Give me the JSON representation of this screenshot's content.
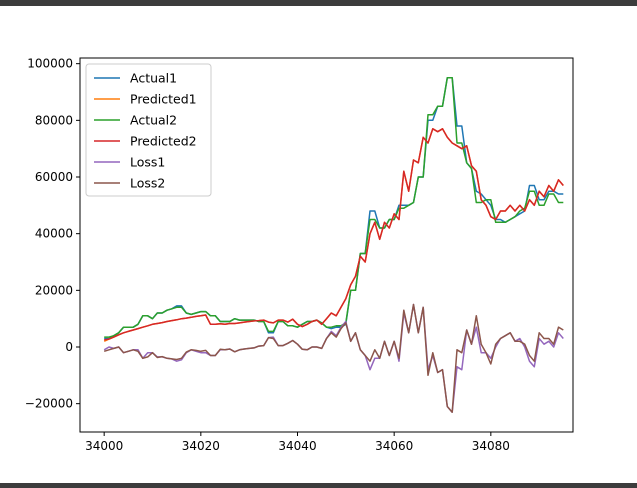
{
  "chart_data": {
    "type": "line",
    "title": "",
    "xlabel": "",
    "ylabel": "",
    "xlim": [
      33995,
      34097
    ],
    "ylim": [
      -30000,
      102000
    ],
    "x_ticks": [
      34000,
      34020,
      34040,
      34060,
      34080
    ],
    "y_ticks": [
      -20000,
      0,
      20000,
      40000,
      60000,
      80000,
      100000
    ],
    "x_tick_labels": [
      "34000",
      "34020",
      "34040",
      "34060",
      "34080"
    ],
    "y_tick_labels": [
      "−20000",
      "0",
      "20000",
      "40000",
      "60000",
      "80000",
      "100000"
    ],
    "grid": false,
    "legend_position": "top-left",
    "x": [
      34000,
      34001,
      34002,
      34003,
      34004,
      34005,
      34006,
      34007,
      34008,
      34009,
      34010,
      34011,
      34012,
      34013,
      34014,
      34015,
      34016,
      34017,
      34018,
      34019,
      34020,
      34021,
      34022,
      34023,
      34024,
      34025,
      34026,
      34027,
      34028,
      34029,
      34030,
      34031,
      34032,
      34033,
      34034,
      34035,
      34036,
      34037,
      34038,
      34039,
      34040,
      34041,
      34042,
      34043,
      34044,
      34045,
      34046,
      34047,
      34048,
      34049,
      34050,
      34051,
      34052,
      34053,
      34054,
      34055,
      34056,
      34057,
      34058,
      34059,
      34060,
      34061,
      34062,
      34063,
      34064,
      34065,
      34066,
      34067,
      34068,
      34069,
      34070,
      34071,
      34072,
      34073,
      34074,
      34075,
      34076,
      34077,
      34078,
      34079,
      34080,
      34081,
      34082,
      34083,
      34084,
      34085,
      34086,
      34087,
      34088,
      34089,
      34090,
      34091,
      34092,
      34093,
      34094,
      34095
    ],
    "series": [
      {
        "name": "Actual1",
        "color": "#1f77b4",
        "values": [
          3000,
          3000,
          4000,
          5000,
          7000,
          7000,
          7000,
          8000,
          11000,
          11000,
          10000,
          12000,
          12000,
          13000,
          13500,
          14500,
          14500,
          12000,
          11500,
          12000,
          12500,
          12500,
          11000,
          11000,
          9000,
          9000,
          9000,
          10000,
          9500,
          9500,
          9500,
          9500,
          9000,
          9000,
          5000,
          5000,
          9000,
          9000,
          7500,
          7500,
          7000,
          8000,
          9000,
          9000,
          9500,
          8500,
          7000,
          6500,
          7000,
          7000,
          8000,
          20000,
          20000,
          33000,
          33000,
          48000,
          48000,
          42000,
          42000,
          45000,
          45000,
          50000,
          50000,
          50000,
          51000,
          60000,
          60000,
          80000,
          80000,
          85000,
          85000,
          95000,
          95000,
          78000,
          78000,
          65000,
          63000,
          55000,
          54000,
          52000,
          50000,
          45000,
          45000,
          44000,
          45000,
          46000,
          47000,
          48000,
          57000,
          57000,
          52000,
          52000,
          55000,
          55000,
          54000,
          54000
        ]
      },
      {
        "name": "Predicted1",
        "color": "#ff7f0e",
        "values": [
          2000,
          2800,
          3500,
          4300,
          5000,
          5500,
          6000,
          6500,
          7000,
          7500,
          8000,
          8300,
          8600,
          9000,
          9300,
          9600,
          10000,
          10200,
          10500,
          10800,
          11000,
          11300,
          8000,
          8000,
          8200,
          8000,
          8300,
          8300,
          8500,
          8800,
          9000,
          9200,
          9300,
          9500,
          8800,
          8500,
          9500,
          9500,
          8800,
          9800,
          8000,
          7200,
          8000,
          9000,
          9500,
          8000,
          10000,
          12000,
          11000,
          14000,
          17000,
          22000,
          25000,
          32000,
          30000,
          40000,
          44000,
          38000,
          44000,
          42000,
          47000,
          45000,
          62000,
          55000,
          66000,
          65000,
          74000,
          72000,
          77000,
          76000,
          77000,
          74000,
          72000,
          71000,
          70000,
          71000,
          64000,
          62000,
          52000,
          50000,
          46000,
          45000,
          48000,
          48000,
          50000,
          48000,
          50000,
          48000,
          52000,
          50000,
          55000,
          53000,
          57000,
          55000,
          59000,
          57000
        ]
      },
      {
        "name": "Actual2",
        "color": "#2ca02c",
        "values": [
          3500,
          3500,
          4000,
          5000,
          7000,
          7000,
          7000,
          8000,
          11000,
          11000,
          10000,
          12000,
          12000,
          13000,
          13500,
          14000,
          14000,
          12000,
          11500,
          12000,
          12500,
          12500,
          11000,
          11000,
          9000,
          9000,
          9000,
          10000,
          9500,
          9500,
          9500,
          9500,
          9000,
          9000,
          5500,
          5500,
          9000,
          9000,
          7500,
          7500,
          7000,
          8000,
          9000,
          9000,
          9500,
          8500,
          7000,
          7000,
          7500,
          7500,
          8500,
          20000,
          20000,
          33000,
          33000,
          45000,
          45000,
          42000,
          42000,
          45000,
          45000,
          49000,
          49000,
          50000,
          51000,
          60000,
          60000,
          82000,
          82000,
          85000,
          85000,
          95000,
          95000,
          72000,
          72000,
          65000,
          63000,
          51000,
          51000,
          52000,
          52000,
          44000,
          44000,
          44000,
          45000,
          46000,
          48000,
          49000,
          55000,
          55000,
          50000,
          50000,
          54000,
          54000,
          51000,
          51000
        ]
      },
      {
        "name": "Predicted2",
        "color": "#d62728",
        "values": [
          2500,
          2800,
          3500,
          4300,
          5000,
          5500,
          6000,
          6500,
          7000,
          7500,
          8000,
          8300,
          8600,
          9000,
          9300,
          9600,
          10000,
          10200,
          10500,
          10800,
          11000,
          11300,
          8000,
          8000,
          8200,
          8000,
          8300,
          8300,
          8500,
          8800,
          9000,
          9200,
          9300,
          9500,
          8800,
          8500,
          9500,
          9500,
          8800,
          9800,
          8000,
          7200,
          8000,
          9000,
          9500,
          8000,
          10000,
          12000,
          11000,
          14000,
          17000,
          22000,
          25000,
          32000,
          30000,
          40000,
          44000,
          38000,
          44000,
          42000,
          47000,
          45000,
          62000,
          55000,
          66000,
          65000,
          74000,
          72000,
          77000,
          76000,
          77000,
          74000,
          72000,
          71000,
          70000,
          71000,
          64000,
          62000,
          52000,
          50000,
          46000,
          45000,
          48000,
          48000,
          50000,
          48000,
          50000,
          48000,
          52000,
          50000,
          55000,
          53000,
          57000,
          55000,
          59000,
          57000
        ]
      },
      {
        "name": "Loss1",
        "color": "#9467bd",
        "values": [
          -1000,
          0,
          -500,
          0,
          -2000,
          -1500,
          -1000,
          -1000,
          -4000,
          -2000,
          -2000,
          -3500,
          -3500,
          -4000,
          -4200,
          -5000,
          -4500,
          -2000,
          -1000,
          -1500,
          -2000,
          -2000,
          -3000,
          -3000,
          -1000,
          -1000,
          -700,
          -1700,
          -1000,
          -700,
          -500,
          -300,
          300,
          500,
          3300,
          3500,
          500,
          500,
          1300,
          2300,
          1000,
          -800,
          -1000,
          0,
          0,
          -500,
          3000,
          5500,
          4000,
          7000,
          9000,
          2000,
          5000,
          -1000,
          -3000,
          -8000,
          -4000,
          -4000,
          2000,
          -3000,
          2000,
          -5000,
          12000,
          5000,
          15000,
          5000,
          14000,
          -8000,
          -3000,
          -9000,
          -8000,
          -21000,
          -23000,
          -7000,
          -8000,
          6000,
          1000,
          7000,
          -2000,
          -2000,
          -4000,
          0,
          3000,
          4000,
          5000,
          2000,
          3000,
          0,
          -5000,
          -7000,
          3000,
          1000,
          2000,
          0,
          5000,
          3000
        ]
      },
      {
        "name": "Loss2",
        "color": "#8c564b",
        "values": [
          -1500,
          -1000,
          -500,
          0,
          -2000,
          -1500,
          -1000,
          -1500,
          -4000,
          -3500,
          -2000,
          -3700,
          -3400,
          -4000,
          -4200,
          -4400,
          -4000,
          -1800,
          -1000,
          -1200,
          -1500,
          -1200,
          -3000,
          -3000,
          -800,
          -1000,
          -700,
          -1700,
          -1000,
          -700,
          -500,
          -300,
          300,
          500,
          3300,
          3000,
          500,
          500,
          1300,
          2300,
          1000,
          -800,
          -1000,
          0,
          0,
          -500,
          3000,
          5000,
          3500,
          6500,
          8500,
          2000,
          5000,
          -1000,
          -3000,
          -5000,
          -1000,
          -4000,
          2000,
          -3000,
          2000,
          -4000,
          13000,
          5000,
          15000,
          5000,
          14000,
          -10000,
          -2000,
          -9000,
          -8000,
          -21000,
          -23000,
          -1000,
          -2000,
          6000,
          1000,
          11000,
          1000,
          -2000,
          -6000,
          1000,
          3000,
          4000,
          5000,
          2000,
          2000,
          1000,
          -3000,
          -5000,
          5000,
          3000,
          3000,
          1000,
          7000,
          6000
        ]
      }
    ]
  }
}
